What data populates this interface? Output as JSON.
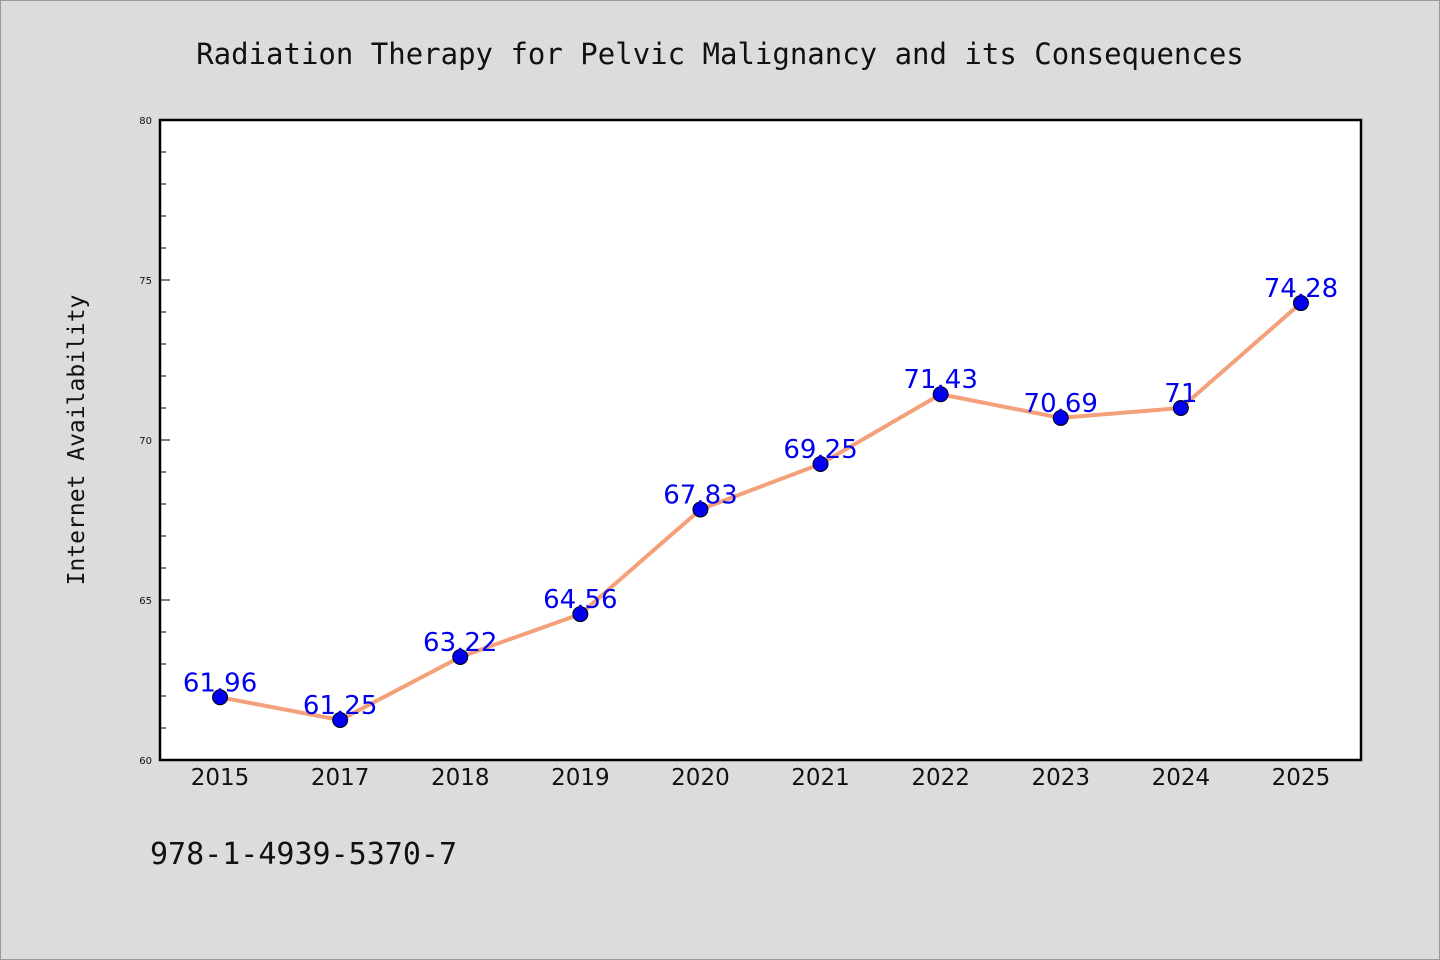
{
  "chart_data": {
    "type": "line",
    "title": "Radiation Therapy for Pelvic Malignancy and its Consequences",
    "xlabel": "",
    "ylabel": "Internet Availability",
    "categories": [
      "2015",
      "2017",
      "2018",
      "2019",
      "2020",
      "2021",
      "2022",
      "2023",
      "2024",
      "2025"
    ],
    "series": [
      {
        "values": [
          61.96,
          61.25,
          63.22,
          64.56,
          67.83,
          69.25,
          71.43,
          70.69,
          71,
          74.28
        ],
        "data_labels": [
          "61.96",
          "61.25",
          "63.22",
          "64.56",
          "67.83",
          "69.25",
          "71.43",
          "70.69",
          "71",
          "74.28"
        ]
      }
    ],
    "ylim": [
      60,
      80
    ],
    "y_ticks": [
      "60",
      "65",
      "70",
      "75",
      "80"
    ],
    "grid": false,
    "legend": "none",
    "colors": {
      "line": "#f4a07a",
      "marker": "#0000ee",
      "label": "#0000ee",
      "background": "#dcdcdc",
      "plot_area": "#ffffff"
    }
  },
  "footer": {
    "isbn": "978-1-4939-5370-7"
  }
}
